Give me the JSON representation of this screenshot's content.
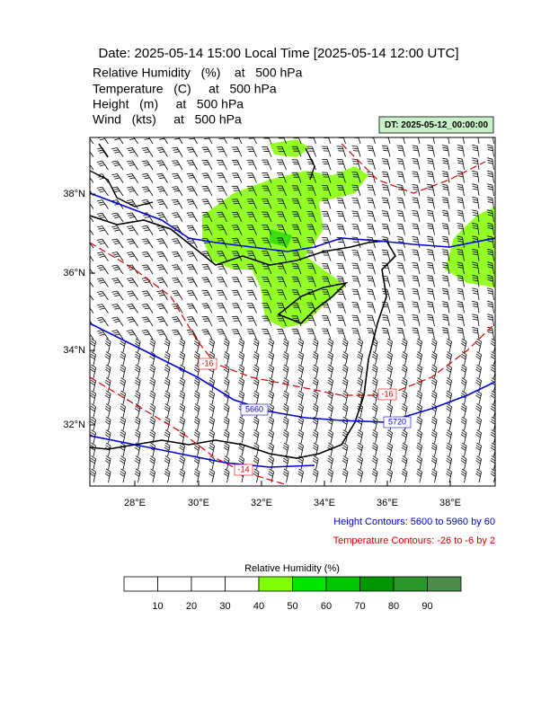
{
  "header": {
    "title": "Date: 2025-05-14  15:00 Local Time [2025-05-14  12:00 UTC]",
    "lines": [
      "Relative Humidity   (%)    at   500 hPa",
      "Temperature   (C)     at   500 hPa",
      "Height   (m)     at   500 hPa",
      "Wind   (kts)     at   500 hPa"
    ]
  },
  "dt_label": "DT: 2025-05-12_00:00:00",
  "map": {
    "lat_labels": [
      "38°N",
      "36°N",
      "34°N",
      "32°N"
    ],
    "lon_labels": [
      "28°E",
      "30°E",
      "32°E",
      "34°E",
      "36°E",
      "38°E"
    ],
    "height_labels": [
      "5660",
      "5720"
    ],
    "temperature_labels": [
      "-16",
      "-16",
      "-14"
    ]
  },
  "legend": {
    "height": "Height Contours: 5600 to 5960 by 60",
    "temperature": "Temperature Contours: -26 to -6 by 2"
  },
  "colorbar": {
    "title": "Relative Humidity  (%)",
    "labels": [
      "10",
      "20",
      "30",
      "40",
      "50",
      "60",
      "70",
      "80",
      "90"
    ],
    "colors": [
      "#ffffff",
      "#ffffff",
      "#ffffff",
      "#ffffff",
      "#80ff00",
      "#00e600",
      "#00c800",
      "#009600",
      "#289628",
      "#4b8c4b"
    ]
  }
}
